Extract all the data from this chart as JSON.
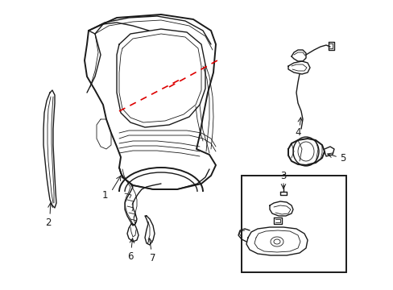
{
  "background_color": "#ffffff",
  "figsize": [
    4.89,
    3.6
  ],
  "dpi": 100,
  "line_color": "#1a1a1a",
  "red_color": "#dd0000",
  "label_fontsize": 8.5,
  "thin_lw": 0.6,
  "med_lw": 1.0,
  "thick_lw": 1.4
}
